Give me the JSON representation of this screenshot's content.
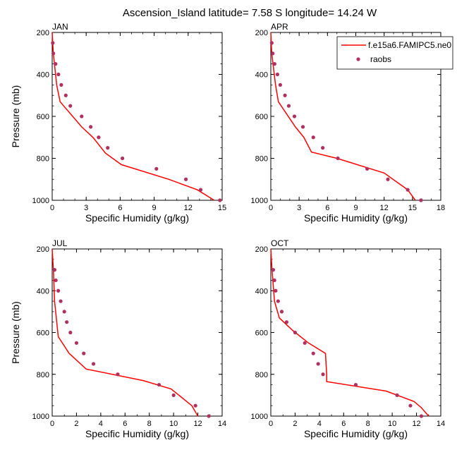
{
  "chart_data": {
    "type": "line",
    "title": "Ascension_Island  latitude= 7.58 S longitude= 14.24 W",
    "legend": {
      "placement": "top-right",
      "entries": [
        {
          "name": "f.e15a6.FAMIPC5.ne0",
          "style": "line",
          "color": "#ff0000"
        },
        {
          "name": "raobs",
          "style": "marker",
          "color": "#b03060"
        }
      ]
    },
    "panels": [
      {
        "label": "JAN",
        "xlabel": "Specific Humidity (g/kg)",
        "ylabel": "Pressure (mb)",
        "xlim": [
          0,
          15
        ],
        "xticks": [
          0,
          3,
          6,
          9,
          12,
          15
        ],
        "ylim": [
          1000,
          200
        ],
        "yticks": [
          200,
          400,
          600,
          800,
          1000
        ],
        "model": {
          "p": [
            200,
            300,
            450,
            530,
            650,
            700,
            775,
            830,
            900,
            950,
            1000
          ],
          "q": [
            0,
            0.1,
            0.4,
            0.7,
            2.6,
            3.6,
            4.7,
            6.1,
            10.3,
            12.8,
            14.3
          ]
        },
        "raobs": {
          "p": [
            250,
            300,
            350,
            400,
            450,
            500,
            550,
            600,
            650,
            700,
            750,
            800,
            850,
            900,
            950,
            1000
          ],
          "q": [
            0.05,
            0.1,
            0.3,
            0.55,
            0.8,
            1.2,
            1.6,
            2.6,
            3.4,
            4.1,
            4.9,
            6.2,
            9.2,
            11.8,
            13.1,
            14.8
          ]
        }
      },
      {
        "label": "APR",
        "xlabel": "Specific Humidity (g/kg)",
        "ylabel": "",
        "xlim": [
          0,
          18
        ],
        "xticks": [
          0,
          3,
          6,
          9,
          12,
          15,
          18
        ],
        "ylim": [
          1000,
          200
        ],
        "yticks": [
          200,
          400,
          600,
          800,
          1000
        ],
        "model": {
          "p": [
            200,
            300,
            450,
            530,
            650,
            700,
            770,
            800,
            870,
            950,
            1000
          ],
          "q": [
            0,
            0.1,
            0.5,
            0.8,
            2.6,
            3.5,
            4.3,
            7.0,
            12.0,
            14.5,
            15.3
          ]
        },
        "raobs": {
          "p": [
            250,
            300,
            350,
            400,
            450,
            500,
            550,
            600,
            650,
            700,
            750,
            800,
            850,
            900,
            950,
            1000
          ],
          "q": [
            0.1,
            0.2,
            0.4,
            0.7,
            1.0,
            1.5,
            1.9,
            2.5,
            3.4,
            4.5,
            5.5,
            7.1,
            10.2,
            12.4,
            14.5,
            15.9
          ]
        }
      },
      {
        "label": "JUL",
        "xlabel": "Specific Humidity (g/kg)",
        "ylabel": "Pressure (mb)",
        "xlim": [
          0,
          14
        ],
        "xticks": [
          0,
          2,
          4,
          6,
          8,
          10,
          12,
          14
        ],
        "ylim": [
          1000,
          200
        ],
        "yticks": [
          200,
          400,
          600,
          800,
          1000
        ],
        "model": {
          "p": [
            200,
            300,
            450,
            620,
            700,
            775,
            830,
            870,
            950,
            1000
          ],
          "q": [
            0,
            0.1,
            0.2,
            0.5,
            1.4,
            2.8,
            7.5,
            9.8,
            11.5,
            12.0
          ]
        },
        "raobs": {
          "p": [
            300,
            350,
            400,
            450,
            500,
            550,
            600,
            650,
            700,
            750,
            800,
            850,
            900,
            950,
            1000
          ],
          "q": [
            0.2,
            0.3,
            0.5,
            0.7,
            1.0,
            1.2,
            1.5,
            2.0,
            2.6,
            3.4,
            5.4,
            8.8,
            10.0,
            11.8,
            12.9
          ]
        }
      },
      {
        "label": "OCT",
        "xlabel": "Specific Humidity (g/kg)",
        "ylabel": "",
        "xlim": [
          0,
          14
        ],
        "xticks": [
          0,
          2,
          4,
          6,
          8,
          10,
          12,
          14
        ],
        "ylim": [
          1000,
          200
        ],
        "yticks": [
          200,
          400,
          600,
          800,
          1000
        ],
        "model": {
          "p": [
            200,
            300,
            450,
            530,
            590,
            650,
            700,
            800,
            835,
            880,
            930,
            960,
            1000
          ],
          "q": [
            0,
            0.1,
            0.3,
            0.7,
            1.8,
            3.1,
            4.5,
            4.6,
            4.6,
            9.5,
            11.8,
            12.4,
            13.0
          ]
        },
        "raobs": {
          "p": [
            300,
            350,
            400,
            450,
            500,
            550,
            600,
            650,
            700,
            750,
            800,
            850,
            900,
            950,
            1000
          ],
          "q": [
            0.2,
            0.3,
            0.4,
            0.6,
            0.9,
            1.3,
            2.0,
            2.8,
            3.5,
            3.9,
            4.3,
            7.0,
            10.4,
            11.5,
            12.4
          ]
        }
      }
    ]
  }
}
